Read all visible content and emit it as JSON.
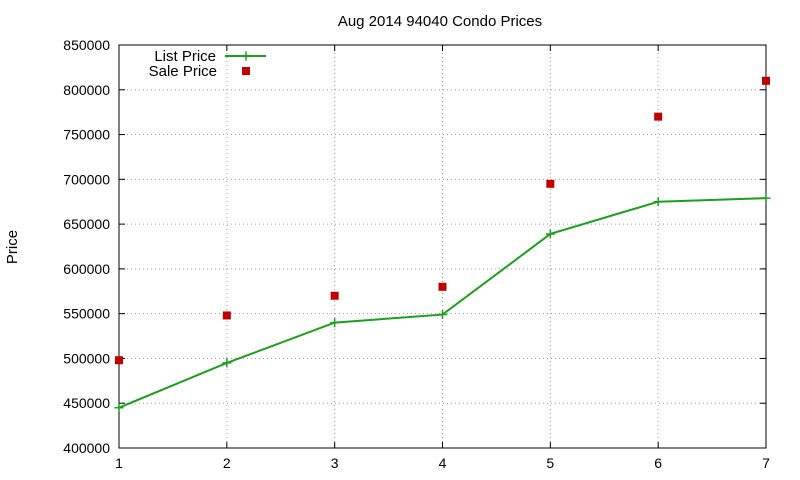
{
  "chart_data": {
    "type": "line",
    "title": "Aug 2014 94040 Condo Prices",
    "xlabel": "",
    "ylabel": "Price",
    "xlim": [
      1,
      7
    ],
    "ylim": [
      400000,
      850000
    ],
    "x_ticks": [
      1,
      2,
      3,
      4,
      5,
      6,
      7
    ],
    "y_ticks": [
      400000,
      450000,
      500000,
      550000,
      600000,
      650000,
      700000,
      750000,
      800000,
      850000
    ],
    "grid": true,
    "legend_position": "top-left",
    "series": [
      {
        "name": "List Price",
        "style": "line-with-plus-markers",
        "color": "#1aa01a",
        "x": [
          1,
          2,
          3,
          4,
          5,
          6,
          7
        ],
        "y": [
          445000,
          495000,
          540000,
          549000,
          639000,
          675000,
          679000
        ]
      },
      {
        "name": "Sale Price",
        "style": "square-markers",
        "color": "#c00000",
        "x": [
          1,
          2,
          3,
          4,
          5,
          6,
          7
        ],
        "y": [
          498000,
          548000,
          570000,
          580000,
          695000,
          770000,
          810000
        ]
      }
    ]
  }
}
